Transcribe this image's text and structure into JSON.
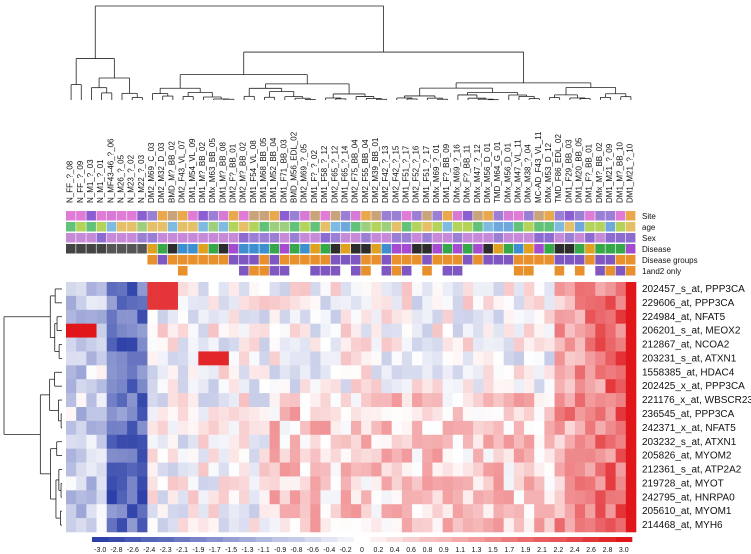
{
  "chart_data": {
    "type": "heatmap",
    "title": "",
    "xlabel": "",
    "ylabel": "",
    "samples": [
      "N_FF_?_08",
      "N_FF_?_09",
      "N_M1_?_03",
      "N_M1_?_01",
      "N_MF43-46_?_06",
      "N_M26_?_05",
      "N_M23_?_02",
      "N_M22_?_03",
      "DM2_M69_C_03",
      "DM2_M32_D_03",
      "BMD_M?_BB_02",
      "DM2_F43_VL_07",
      "DM1_M54_VL_09",
      "DM1_M?_BB_02",
      "DMx_M63_BB_05",
      "DM1_M?_BB_08",
      "DM2_F?_BB_01",
      "DM2_M?_BB_02",
      "DM1_F54_VL_08",
      "DM1_M68_BB_05",
      "DM1_M52_BB_04",
      "DM1_F71_BB_03",
      "BMD_M56_EDL_02",
      "DM2_M69_?_05",
      "DM1_F?_?_02",
      "DM1_F58_?_12",
      "DM2_F65_?_12",
      "DM1_F65_?_14",
      "DM2_F75_BB_04",
      "DM2_F55_BB_04",
      "DM2_M39_BB_01",
      "DM2_F42_?_13",
      "DM2_F42_?_15",
      "DM1_F51_?_17",
      "DM2_F52_?_16",
      "DM1_F51_?_17",
      "DMx_M69_?_01",
      "DM1_F?_BB_09",
      "DMx_M69_?_16",
      "DMx_F?_BB_11",
      "DMx_M47_?_12",
      "DMx_M56_D_01",
      "TMD_M64_G_01",
      "DMx_M56_D_01",
      "DMx_M47_VL_11",
      "DMx_M38_?_04",
      "MC-AD_F43_VL_11",
      "DMx_M53_D_12",
      "TMD_F86_EDL_02",
      "DM1_F29_BB_03",
      "DM1_M20_BB_05",
      "DM1_F?_BB_01",
      "DMx_M?_BB_02",
      "DM1_M21_?_09",
      "DM1_M?_BB_10",
      "DM1_M21_?_10"
    ],
    "annotation_rows": [
      "Site",
      "age",
      "Sex",
      "Disease",
      "Disease groups",
      "1and2 only"
    ],
    "genes": [
      "202457_s_at, PPP3CA",
      "229606_at, PPP3CA",
      "224984_at, NFAT5",
      "206201_s_at, MEOX2",
      "212867_at, NCOA2",
      "203231_s_at, ATXN1",
      "1558385_at, HDAC4",
      "202425_x_at, PPP3CA",
      "221176_x_at, WBSCR23",
      "236545_at, PPP3CA",
      "242371_x_at, NFAT5",
      "203232_s_at, ATXN1",
      "205826_at, MYOM2",
      "212361_s_at, ATP2A2",
      "219728_at, MYOT",
      "242795_at, HNRPA0",
      "205610_at, MYOM1",
      "214468_at, MYH6"
    ],
    "scale": [
      -3.0,
      -2.8,
      -2.6,
      -2.4,
      -2.3,
      -2.1,
      -1.9,
      -1.7,
      -1.5,
      -1.3,
      -1.1,
      -0.9,
      -0.8,
      -0.6,
      -0.4,
      -0.2,
      0,
      0.2,
      0.4,
      0.6,
      0.8,
      0.9,
      1.1,
      1.3,
      1.5,
      1.7,
      1.9,
      2.1,
      2.2,
      2.4,
      2.6,
      2.8,
      3.0
    ],
    "scale_labels": [
      "-3.0",
      "-2.8",
      "-2.6",
      "-2.4",
      "-2.3",
      "-2.1",
      "-1.9",
      "-1.7",
      "-1.5",
      "-1.3",
      "-1.1",
      "-0.9",
      "-0.8",
      "-0.6",
      "-0.4",
      "-0.2",
      "0",
      "0.2",
      "0.4",
      "0.6",
      "0.8",
      "0.9",
      "1.1",
      "1.3",
      "1.5",
      "1.7",
      "1.9",
      "2.1",
      "2.2",
      "2.4",
      "2.6",
      "2.8",
      "3.0"
    ],
    "colors": {
      "low": "#2b3fa8",
      "mid": "#ffffff",
      "high": "#e0161b"
    }
  }
}
